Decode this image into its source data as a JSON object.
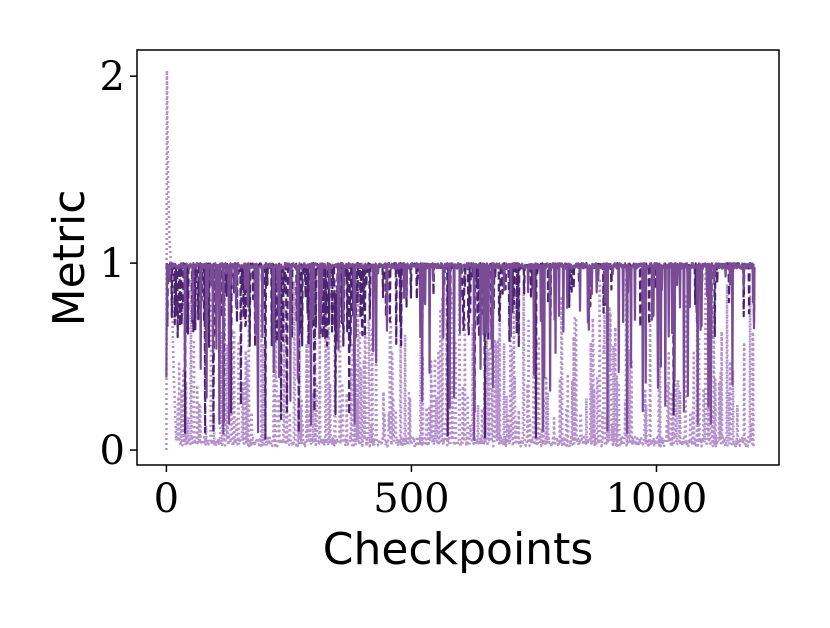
{
  "chart_data": {
    "type": "line",
    "title": "",
    "xlabel": "Checkpoints",
    "ylabel": "Metric",
    "xlim": [
      -60,
      1250
    ],
    "ylim": [
      -0.08,
      2.14
    ],
    "xticks": [
      {
        "value": 0,
        "label": "0"
      },
      {
        "value": 500,
        "label": "500"
      },
      {
        "value": 1000,
        "label": "1000"
      }
    ],
    "yticks": [
      {
        "value": 0,
        "label": "0"
      },
      {
        "value": 1,
        "label": "1"
      },
      {
        "value": 2,
        "label": "2"
      }
    ],
    "grid": false,
    "legend": "none",
    "x_range": [
      0,
      1200
    ],
    "series": [
      {
        "style": "dotted",
        "color": "#b491cc",
        "baseline": 0.02,
        "values_sample": [
          [
            0,
            0.0
          ],
          [
            1,
            2.03
          ],
          [
            3,
            1.5
          ],
          [
            6,
            1.15
          ],
          [
            10,
            0.95
          ],
          [
            15,
            0.4
          ],
          [
            20,
            0.05
          ],
          [
            30,
            0.6
          ],
          [
            50,
            0.3
          ],
          [
            80,
            0.02
          ],
          [
            100,
            0.7
          ],
          [
            130,
            0.05
          ],
          [
            160,
            0.9
          ],
          [
            200,
            0.1
          ],
          [
            250,
            0.05
          ],
          [
            300,
            0.8
          ],
          [
            330,
            0.2
          ],
          [
            360,
            0.05
          ],
          [
            400,
            0.85
          ],
          [
            450,
            0.02
          ],
          [
            500,
            0.9
          ],
          [
            550,
            0.02
          ],
          [
            600,
            0.1
          ],
          [
            640,
            0.05
          ],
          [
            660,
            0.5
          ],
          [
            700,
            0.02
          ],
          [
            750,
            0.03
          ],
          [
            800,
            0.02
          ],
          [
            850,
            0.02
          ],
          [
            900,
            0.02
          ],
          [
            950,
            0.03
          ],
          [
            1000,
            0.02
          ],
          [
            1050,
            0.02
          ],
          [
            1100,
            0.02
          ],
          [
            1150,
            0.02
          ],
          [
            1180,
            0.08
          ],
          [
            1200,
            0.02
          ]
        ]
      },
      {
        "style": "dashed",
        "color": "#4b2470",
        "baseline": 0.98,
        "values_sample": [
          [
            0,
            1.0
          ],
          [
            10,
            0.05
          ],
          [
            20,
            0.98
          ],
          [
            100,
            0.97
          ],
          [
            200,
            0.96
          ],
          [
            300,
            0.97
          ],
          [
            400,
            0.99
          ],
          [
            500,
            1.0
          ],
          [
            600,
            0.99
          ],
          [
            650,
            0.45
          ],
          [
            700,
            0.99
          ],
          [
            800,
            1.0
          ],
          [
            900,
            1.0
          ],
          [
            1000,
            1.0
          ],
          [
            1100,
            1.0
          ],
          [
            1200,
            0.98
          ]
        ]
      },
      {
        "style": "solid",
        "color": "#7a4c96",
        "baseline": 0.99,
        "values_sample": [
          [
            0,
            1.0
          ],
          [
            10,
            0.05
          ],
          [
            20,
            0.99
          ],
          [
            100,
            0.98
          ],
          [
            200,
            0.97
          ],
          [
            300,
            0.98
          ],
          [
            400,
            0.99
          ],
          [
            500,
            1.0
          ],
          [
            600,
            0.99
          ],
          [
            700,
            1.0
          ],
          [
            800,
            1.0
          ],
          [
            900,
            1.0
          ],
          [
            1000,
            1.0
          ],
          [
            1100,
            1.0
          ],
          [
            1200,
            0.99
          ]
        ]
      }
    ]
  }
}
